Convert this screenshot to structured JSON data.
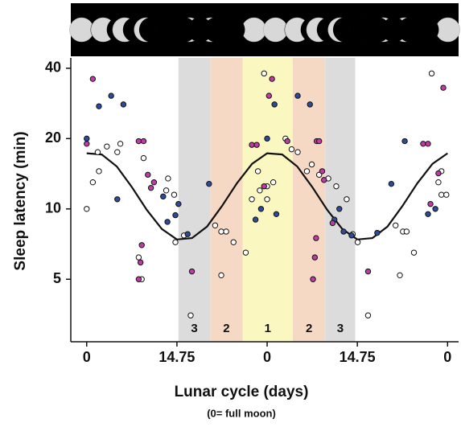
{
  "chart_data": {
    "type": "scatter",
    "x_label": "Lunar cycle (days)",
    "x_sublabel": "(0= full moon)",
    "y_label": "Sleep latency (min)",
    "log_y": true,
    "xlim": [
      -2.6,
      60.8
    ],
    "xticks": [
      0,
      14.75,
      {
        "value": 29.5,
        "label": "0"
      },
      {
        "value": 44.25,
        "label": "14.75"
      },
      {
        "value": 59,
        "label": "0"
      }
    ],
    "ylim": [
      2.7,
      44.3
    ],
    "yticks": [
      5,
      10,
      20,
      40
    ],
    "bands": [
      {
        "label": "3",
        "x0": 15.0,
        "x1": 20.2,
        "color": "#dcdcdc"
      },
      {
        "label": "2",
        "x0": 20.2,
        "x1": 25.5,
        "color": "#f6d9c4"
      },
      {
        "label": "1",
        "x0": 25.5,
        "x1": 33.7,
        "color": "#fbf7c0"
      },
      {
        "label": "2",
        "x0": 33.7,
        "x1": 39.0,
        "color": "#f6d9c4"
      },
      {
        "label": "3",
        "x0": 39.0,
        "x1": 43.9,
        "color": "#dcdcdc"
      }
    ],
    "series": [
      {
        "color": "#ffffff",
        "x": [
          0.0,
          1.0,
          2.0,
          1.8,
          3.3,
          5.0,
          5.5,
          9.3,
          8.5,
          9.0,
          13.3,
          13.0,
          14.3,
          14.5,
          15.9,
          17.0,
          21.0,
          22.0,
          22.8,
          24.0,
          22.0,
          26.0,
          27.0,
          28.3,
          29.5,
          29.5,
          28.0,
          30.5,
          29.0,
          32.5,
          33.5,
          34.5,
          36.0,
          36.8,
          38.0,
          39.5,
          40.8,
          42.5,
          43.5,
          44.3,
          46.0,
          50.5,
          51.7,
          52.3,
          51.2,
          53.5,
          56.4,
          57.5,
          58.0,
          58.8,
          58.0
        ],
        "values": [
          10.0,
          13.0,
          14.5,
          17.5,
          18.5,
          17.5,
          19.0,
          16.5,
          6.2,
          5.0,
          13.5,
          12.0,
          11.5,
          7.2,
          7.7,
          3.5,
          8.5,
          8.0,
          8.0,
          7.2,
          5.2,
          6.5,
          11.0,
          12.0,
          12.5,
          11.0,
          14.5,
          13.0,
          38.0,
          20.0,
          18.0,
          17.5,
          14.5,
          15.5,
          14.0,
          13.5,
          12.5,
          11.0,
          7.8,
          7.2,
          3.5,
          8.5,
          8.0,
          8.0,
          5.2,
          6.5,
          38.0,
          13.0,
          11.5,
          11.5,
          14.5
        ]
      },
      {
        "color": "#2b4c9c",
        "x": [
          0.0,
          2.0,
          4.0,
          6.0,
          5.0,
          12.5,
          13.2,
          14.5,
          15.0,
          16.5,
          20.0,
          27.6,
          28.5,
          29.5,
          30.7,
          31.0,
          34.5,
          36.5,
          40.5,
          41.3,
          42.0,
          43.3,
          47.5,
          49.8,
          52.0,
          55.8,
          57.0
        ],
        "values": [
          20.0,
          27.5,
          30.5,
          28.0,
          11.0,
          11.3,
          8.8,
          9.4,
          10.5,
          7.8,
          12.8,
          9.0,
          10.0,
          20.0,
          28.0,
          9.5,
          30.5,
          28.0,
          9.0,
          10.0,
          8.0,
          7.7,
          7.9,
          12.8,
          19.5,
          9.5,
          10.0
        ]
      },
      {
        "color": "#c03aa8",
        "x": [
          0.0,
          1.0,
          8.5,
          9.3,
          10.0,
          11.0,
          10.5,
          9.0,
          8.8,
          8.5,
          17.2,
          27.0,
          27.8,
          29.0,
          29.8,
          30.3,
          32.8,
          37.6,
          38.0,
          38.5,
          38.8,
          37.5,
          37.3,
          37.0,
          40.2,
          46.0,
          55.0,
          55.8,
          57.5,
          56.2,
          58.3
        ],
        "values": [
          19.0,
          36.0,
          19.5,
          19.5,
          14.0,
          13.0,
          12.3,
          7.0,
          5.9,
          5.0,
          5.4,
          18.8,
          18.8,
          12.5,
          30.5,
          36.0,
          19.5,
          19.5,
          19.5,
          14.5,
          13.3,
          7.5,
          6.2,
          5.0,
          8.7,
          5.4,
          19.0,
          19.0,
          14.2,
          10.5,
          33.0
        ]
      }
    ],
    "curve": {
      "color": "#111111",
      "x": [
        0,
        2.46,
        4.92,
        7.38,
        9.83,
        12.29,
        14.75,
        17.21,
        19.67,
        22.13,
        24.58,
        27.04,
        29.5,
        31.96,
        34.42,
        36.88,
        39.33,
        41.79,
        44.25,
        46.71,
        49.17,
        51.63,
        54.08,
        56.54,
        59.0
      ],
      "values": [
        17.3,
        17.1,
        15.2,
        12.4,
        9.9,
        8.2,
        7.4,
        7.5,
        8.4,
        10.3,
        12.9,
        15.6,
        17.3,
        17.1,
        15.2,
        12.4,
        9.9,
        8.2,
        7.4,
        7.5,
        8.4,
        10.3,
        12.9,
        15.6,
        17.3
      ]
    }
  }
}
